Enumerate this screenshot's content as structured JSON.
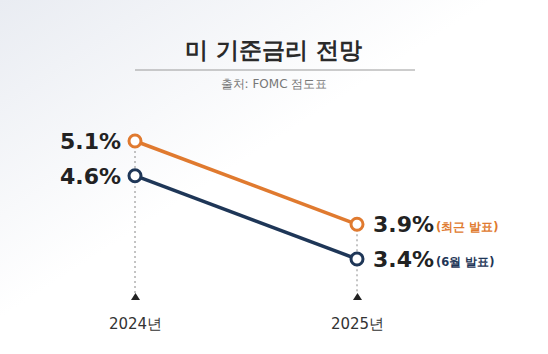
{
  "chart_data": {
    "type": "line",
    "title": "미 기준금리 전망",
    "subtitle": "출처: FOMC 점도표",
    "categories": [
      "2024년",
      "2025년"
    ],
    "series": [
      {
        "name": "(최근 발표)",
        "color": "#e07a2f",
        "values": [
          5.1,
          3.9
        ],
        "value_labels": [
          "5.1%",
          "3.9%"
        ]
      },
      {
        "name": "(6월 발표)",
        "color": "#1e3657",
        "values": [
          4.6,
          3.4
        ],
        "value_labels": [
          "4.6%",
          "3.4%"
        ]
      }
    ],
    "data_labels": true,
    "tick_labels": "x",
    "marker": "circle"
  }
}
